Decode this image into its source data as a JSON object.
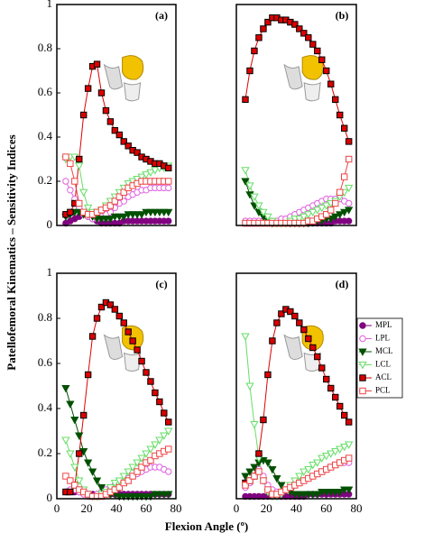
{
  "chart_data": [
    {
      "type": "line",
      "title": "(a)",
      "ylabel": "Patellofemoral Kinematics – Sensitivity Indices",
      "x": [
        6,
        9,
        12,
        15,
        18,
        21,
        24,
        27,
        30,
        33,
        36,
        39,
        42,
        45,
        48,
        51,
        54,
        57,
        60,
        63,
        66,
        69,
        72,
        75
      ],
      "xlim": [
        0,
        80
      ],
      "ylim": [
        0,
        1
      ],
      "yticks": [
        0,
        0.2,
        0.4,
        0.6,
        0.8,
        1
      ],
      "series": [
        {
          "name": "MPL",
          "color": "#800080",
          "marker": "circle",
          "filled": true,
          "values": [
            0.01,
            0.02,
            0.03,
            0.04,
            0.05,
            0.04,
            0.03,
            0.02,
            0.01,
            0.01,
            0.01,
            0.01,
            0.01,
            0.02,
            0.02,
            0.02,
            0.02,
            0.02,
            0.02,
            0.02,
            0.02,
            0.02,
            0.02,
            0.02
          ]
        },
        {
          "name": "LPL",
          "color": "#e060e0",
          "marker": "circle",
          "filled": false,
          "values": [
            0.2,
            0.16,
            0.12,
            0.08,
            0.05,
            0.04,
            0.03,
            0.03,
            0.04,
            0.05,
            0.06,
            0.08,
            0.1,
            0.11,
            0.13,
            0.14,
            0.15,
            0.16,
            0.16,
            0.17,
            0.17,
            0.17,
            0.17,
            0.17
          ]
        },
        {
          "name": "MCL",
          "color": "#005000",
          "marker": "triangle",
          "filled": true,
          "values": [
            0.04,
            0.05,
            0.06,
            0.06,
            0.05,
            0.05,
            0.04,
            0.03,
            0.03,
            0.03,
            0.03,
            0.04,
            0.04,
            0.04,
            0.05,
            0.05,
            0.05,
            0.05,
            0.06,
            0.06,
            0.06,
            0.06,
            0.06,
            0.06
          ]
        },
        {
          "name": "LCL",
          "color": "#66dd66",
          "marker": "triangle",
          "filled": false,
          "values": [
            0.3,
            0.31,
            0.31,
            0.27,
            0.15,
            0.08,
            0.06,
            0.06,
            0.07,
            0.09,
            0.11,
            0.13,
            0.15,
            0.17,
            0.19,
            0.2,
            0.21,
            0.22,
            0.23,
            0.24,
            0.25,
            0.26,
            0.26,
            0.27
          ]
        },
        {
          "name": "ACL",
          "color": "#dd0000",
          "marker": "square",
          "filled": true,
          "values": [
            0.05,
            0.06,
            0.1,
            0.3,
            0.5,
            0.62,
            0.72,
            0.73,
            0.6,
            0.52,
            0.47,
            0.43,
            0.41,
            0.38,
            0.36,
            0.34,
            0.33,
            0.31,
            0.3,
            0.29,
            0.28,
            0.28,
            0.27,
            0.26
          ]
        },
        {
          "name": "PCL",
          "color": "#ee4444",
          "marker": "square",
          "filled": false,
          "values": [
            0.31,
            0.28,
            0.2,
            0.1,
            0.06,
            0.05,
            0.05,
            0.06,
            0.07,
            0.08,
            0.09,
            0.11,
            0.13,
            0.15,
            0.17,
            0.18,
            0.19,
            0.2,
            0.2,
            0.2,
            0.2,
            0.2,
            0.2,
            0.2
          ]
        }
      ]
    },
    {
      "type": "line",
      "title": "(b)",
      "x": [
        6,
        9,
        12,
        15,
        18,
        21,
        24,
        27,
        30,
        33,
        36,
        39,
        42,
        45,
        48,
        51,
        54,
        57,
        60,
        63,
        66,
        69,
        72,
        75
      ],
      "xlim": [
        0,
        80
      ],
      "ylim": [
        0,
        1
      ],
      "series": [
        {
          "name": "MPL",
          "color": "#800080",
          "marker": "circle",
          "filled": true,
          "values": [
            0.01,
            0.01,
            0.01,
            0.01,
            0.01,
            0.01,
            0.01,
            0.01,
            0.01,
            0.01,
            0.01,
            0.01,
            0.01,
            0.01,
            0.01,
            0.01,
            0.01,
            0.01,
            0.01,
            0.01,
            0.02,
            0.02,
            0.02,
            0.02
          ]
        },
        {
          "name": "LPL",
          "color": "#e060e0",
          "marker": "circle",
          "filled": false,
          "values": [
            0.02,
            0.02,
            0.02,
            0.02,
            0.02,
            0.02,
            0.02,
            0.02,
            0.03,
            0.03,
            0.04,
            0.05,
            0.06,
            0.07,
            0.08,
            0.09,
            0.1,
            0.11,
            0.12,
            0.12,
            0.12,
            0.12,
            0.11,
            0.1
          ]
        },
        {
          "name": "MCL",
          "color": "#005000",
          "marker": "triangle",
          "filled": true,
          "values": [
            0.2,
            0.14,
            0.09,
            0.06,
            0.04,
            0.02,
            0.01,
            0.01,
            0.01,
            0.01,
            0.01,
            0.01,
            0.01,
            0.01,
            0.01,
            0.02,
            0.02,
            0.02,
            0.03,
            0.03,
            0.04,
            0.05,
            0.06,
            0.07
          ]
        },
        {
          "name": "LCL",
          "color": "#66dd66",
          "marker": "triangle",
          "filled": false,
          "values": [
            0.25,
            0.18,
            0.13,
            0.09,
            0.06,
            0.04,
            0.02,
            0.01,
            0.01,
            0.01,
            0.02,
            0.03,
            0.03,
            0.04,
            0.05,
            0.06,
            0.07,
            0.08,
            0.09,
            0.1,
            0.11,
            0.13,
            0.15,
            0.17
          ]
        },
        {
          "name": "ACL",
          "color": "#dd0000",
          "marker": "square",
          "filled": true,
          "values": [
            0.57,
            0.7,
            0.79,
            0.85,
            0.89,
            0.92,
            0.94,
            0.94,
            0.93,
            0.93,
            0.92,
            0.91,
            0.89,
            0.87,
            0.85,
            0.82,
            0.79,
            0.75,
            0.7,
            0.64,
            0.57,
            0.5,
            0.44,
            0.38
          ]
        },
        {
          "name": "PCL",
          "color": "#ee4444",
          "marker": "square",
          "filled": false,
          "values": [
            0.01,
            0.01,
            0.01,
            0.01,
            0.01,
            0.01,
            0.01,
            0.01,
            0.01,
            0.01,
            0.01,
            0.01,
            0.01,
            0.01,
            0.02,
            0.02,
            0.03,
            0.04,
            0.05,
            0.07,
            0.1,
            0.15,
            0.22,
            0.3
          ]
        }
      ]
    },
    {
      "type": "line",
      "title": "(c)",
      "xlabel": "Flexion Angle (º)",
      "x": [
        6,
        9,
        12,
        15,
        18,
        21,
        24,
        27,
        30,
        33,
        36,
        39,
        42,
        45,
        48,
        51,
        54,
        57,
        60,
        63,
        66,
        69,
        72,
        75
      ],
      "xlim": [
        0,
        80
      ],
      "xticks": [
        0,
        20,
        40,
        60,
        80
      ],
      "ylim": [
        0,
        1
      ],
      "yticks": [
        0,
        0.2,
        0.4,
        0.6,
        0.8,
        1
      ],
      "series": [
        {
          "name": "MPL",
          "color": "#800080",
          "marker": "circle",
          "filled": true,
          "values": [
            0.03,
            0.03,
            0.03,
            0.03,
            0.03,
            0.02,
            0.02,
            0.02,
            0.02,
            0.02,
            0.02,
            0.02,
            0.02,
            0.02,
            0.02,
            0.02,
            0.02,
            0.02,
            0.02,
            0.02,
            0.02,
            0.02,
            0.02,
            0.02
          ]
        },
        {
          "name": "LPL",
          "color": "#e060e0",
          "marker": "circle",
          "filled": false,
          "values": [
            0.03,
            0.04,
            0.04,
            0.03,
            0.02,
            0.01,
            0.01,
            0.02,
            0.03,
            0.04,
            0.05,
            0.06,
            0.07,
            0.08,
            0.09,
            0.1,
            0.11,
            0.12,
            0.13,
            0.14,
            0.14,
            0.14,
            0.13,
            0.12
          ]
        },
        {
          "name": "MCL",
          "color": "#005000",
          "marker": "triangle",
          "filled": true,
          "values": [
            0.49,
            0.42,
            0.35,
            0.28,
            0.21,
            0.16,
            0.12,
            0.08,
            0.05,
            0.03,
            0.02,
            0.02,
            0.01,
            0.01,
            0.01,
            0.01,
            0.01,
            0.01,
            0.01,
            0.01,
            0.02,
            0.02,
            0.02,
            0.02
          ]
        },
        {
          "name": "LCL",
          "color": "#66dd66",
          "marker": "triangle",
          "filled": false,
          "values": [
            0.26,
            0.2,
            0.14,
            0.08,
            0.04,
            0.02,
            0.01,
            0.01,
            0.02,
            0.03,
            0.05,
            0.07,
            0.08,
            0.1,
            0.12,
            0.14,
            0.16,
            0.18,
            0.2,
            0.22,
            0.24,
            0.26,
            0.28,
            0.3
          ]
        },
        {
          "name": "ACL",
          "color": "#dd0000",
          "marker": "square",
          "filled": true,
          "values": [
            0.03,
            0.03,
            0.06,
            0.2,
            0.37,
            0.55,
            0.72,
            0.8,
            0.85,
            0.87,
            0.86,
            0.84,
            0.81,
            0.78,
            0.74,
            0.7,
            0.66,
            0.61,
            0.56,
            0.52,
            0.47,
            0.43,
            0.38,
            0.34
          ]
        },
        {
          "name": "PCL",
          "color": "#ee4444",
          "marker": "square",
          "filled": false,
          "values": [
            0.1,
            0.08,
            0.06,
            0.04,
            0.03,
            0.02,
            0.01,
            0.01,
            0.01,
            0.02,
            0.03,
            0.04,
            0.05,
            0.07,
            0.08,
            0.1,
            0.12,
            0.14,
            0.16,
            0.17,
            0.19,
            0.2,
            0.21,
            0.22
          ]
        }
      ]
    },
    {
      "type": "line",
      "title": "(d)",
      "x": [
        6,
        9,
        12,
        15,
        18,
        21,
        24,
        27,
        30,
        33,
        36,
        39,
        42,
        45,
        48,
        51,
        54,
        57,
        60,
        63,
        66,
        69,
        72,
        75
      ],
      "xlim": [
        0,
        80
      ],
      "xticks": [
        0,
        20,
        40,
        60,
        80
      ],
      "ylim": [
        0,
        1
      ],
      "series": [
        {
          "name": "MPL",
          "color": "#800080",
          "marker": "circle",
          "filled": true,
          "values": [
            0.01,
            0.01,
            0.01,
            0.01,
            0.01,
            0.01,
            0.01,
            0.01,
            0.01,
            0.01,
            0.01,
            0.01,
            0.01,
            0.01,
            0.02,
            0.02,
            0.02,
            0.02,
            0.02,
            0.02,
            0.02,
            0.02,
            0.02,
            0.02
          ]
        },
        {
          "name": "LPL",
          "color": "#e060e0",
          "marker": "circle",
          "filled": false,
          "values": [
            0.05,
            0.07,
            0.1,
            0.13,
            0.1,
            0.06,
            0.04,
            0.03,
            0.03,
            0.04,
            0.05,
            0.06,
            0.07,
            0.08,
            0.09,
            0.1,
            0.11,
            0.12,
            0.13,
            0.14,
            0.15,
            0.16,
            0.16,
            0.16
          ]
        },
        {
          "name": "MCL",
          "color": "#005000",
          "marker": "triangle",
          "filled": true,
          "values": [
            0.1,
            0.12,
            0.14,
            0.16,
            0.17,
            0.16,
            0.13,
            0.09,
            0.06,
            0.04,
            0.03,
            0.02,
            0.02,
            0.02,
            0.02,
            0.02,
            0.02,
            0.03,
            0.03,
            0.03,
            0.03,
            0.03,
            0.04,
            0.04
          ]
        },
        {
          "name": "LCL",
          "color": "#66dd66",
          "marker": "triangle",
          "filled": false,
          "values": [
            0.72,
            0.5,
            0.33,
            0.18,
            0.08,
            0.03,
            0.01,
            0.01,
            0.02,
            0.04,
            0.06,
            0.08,
            0.1,
            0.12,
            0.13,
            0.15,
            0.16,
            0.18,
            0.19,
            0.2,
            0.21,
            0.22,
            0.23,
            0.24
          ]
        },
        {
          "name": "ACL",
          "color": "#dd0000",
          "marker": "square",
          "filled": true,
          "values": [
            0.07,
            0.08,
            0.1,
            0.2,
            0.35,
            0.55,
            0.7,
            0.78,
            0.82,
            0.84,
            0.83,
            0.81,
            0.78,
            0.75,
            0.71,
            0.67,
            0.63,
            0.58,
            0.53,
            0.49,
            0.45,
            0.41,
            0.37,
            0.34
          ]
        },
        {
          "name": "PCL",
          "color": "#ee4444",
          "marker": "square",
          "filled": false,
          "values": [
            0.06,
            0.08,
            0.1,
            0.12,
            0.08,
            0.04,
            0.02,
            0.02,
            0.03,
            0.04,
            0.05,
            0.06,
            0.07,
            0.08,
            0.09,
            0.1,
            0.11,
            0.12,
            0.13,
            0.14,
            0.15,
            0.16,
            0.17,
            0.18
          ]
        }
      ]
    }
  ]
}
